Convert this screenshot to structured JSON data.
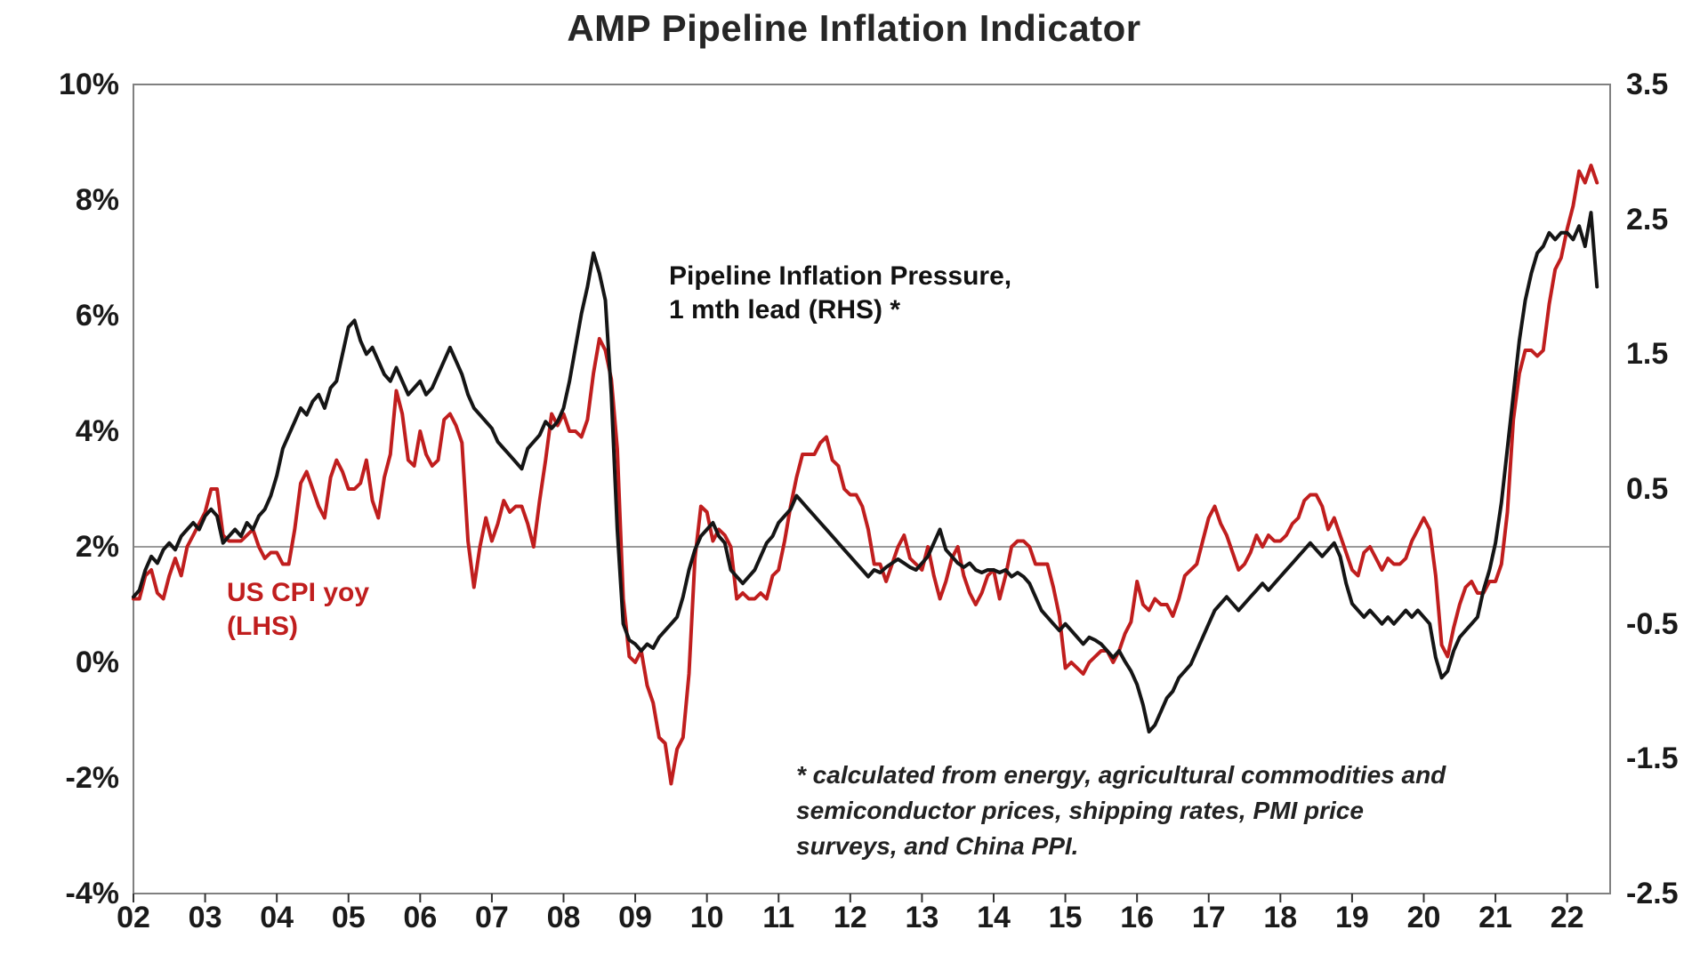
{
  "title": "AMP Pipeline Inflation Indicator",
  "chart_data": {
    "type": "line",
    "title": "AMP Pipeline Inflation Indicator",
    "x_start_year": 2002,
    "x_end": 2022.6,
    "points_per_year": 12,
    "x_tick_labels": [
      "02",
      "03",
      "04",
      "05",
      "06",
      "07",
      "08",
      "09",
      "10",
      "11",
      "12",
      "13",
      "14",
      "15",
      "16",
      "17",
      "18",
      "19",
      "20",
      "21",
      "22"
    ],
    "left_axis": {
      "range": [
        -4,
        10
      ],
      "tick_values": [
        10,
        8,
        6,
        4,
        2,
        0,
        -2,
        -4
      ],
      "tick_labels": [
        "10%",
        "8%",
        "6%",
        "4%",
        "2%",
        "0%",
        "-2%",
        "-4%"
      ]
    },
    "right_axis": {
      "range": [
        -2.5,
        3.5
      ],
      "tick_values": [
        3.5,
        2.5,
        1.5,
        0.5,
        -0.5,
        -1.5,
        -2.5
      ],
      "tick_labels": [
        "3.5",
        "2.5",
        "1.5",
        "0.5",
        "-0.5",
        "-1.5",
        "-2.5"
      ]
    },
    "gridline_left_value": 2,
    "colors": {
      "cpi_red": "#c01e1e",
      "pipeline_black": "#151515",
      "axis_box": "#808080",
      "gridline": "#9a9a9a"
    },
    "series": [
      {
        "name": "US CPI yoy (LHS)",
        "axis": "left",
        "color": "#c01e1e",
        "values": [
          1.1,
          1.1,
          1.5,
          1.6,
          1.2,
          1.1,
          1.5,
          1.8,
          1.5,
          2.0,
          2.2,
          2.4,
          2.6,
          3.0,
          3.0,
          2.2,
          2.1,
          2.1,
          2.1,
          2.2,
          2.3,
          2.0,
          1.8,
          1.9,
          1.9,
          1.7,
          1.7,
          2.3,
          3.1,
          3.3,
          3.0,
          2.7,
          2.5,
          3.2,
          3.5,
          3.3,
          3.0,
          3.0,
          3.1,
          3.5,
          2.8,
          2.5,
          3.2,
          3.6,
          4.7,
          4.3,
          3.5,
          3.4,
          4.0,
          3.6,
          3.4,
          3.5,
          4.2,
          4.3,
          4.1,
          3.8,
          2.1,
          1.3,
          2.0,
          2.5,
          2.1,
          2.4,
          2.8,
          2.6,
          2.7,
          2.7,
          2.4,
          2.0,
          2.8,
          3.5,
          4.3,
          4.1,
          4.3,
          4.0,
          4.0,
          3.9,
          4.2,
          5.0,
          5.6,
          5.4,
          4.9,
          3.7,
          1.1,
          0.1,
          0.0,
          0.2,
          -0.4,
          -0.7,
          -1.3,
          -1.4,
          -2.1,
          -1.5,
          -1.3,
          -0.2,
          1.8,
          2.7,
          2.6,
          2.1,
          2.3,
          2.2,
          2.0,
          1.1,
          1.2,
          1.1,
          1.1,
          1.2,
          1.1,
          1.5,
          1.6,
          2.1,
          2.7,
          3.2,
          3.6,
          3.6,
          3.6,
          3.8,
          3.9,
          3.5,
          3.4,
          3.0,
          2.9,
          2.9,
          2.7,
          2.3,
          1.7,
          1.7,
          1.4,
          1.7,
          2.0,
          2.2,
          1.8,
          1.7,
          1.6,
          2.0,
          1.5,
          1.1,
          1.4,
          1.8,
          2.0,
          1.5,
          1.2,
          1.0,
          1.2,
          1.5,
          1.6,
          1.1,
          1.5,
          2.0,
          2.1,
          2.1,
          2.0,
          1.7,
          1.7,
          1.7,
          1.3,
          0.8,
          -0.1,
          0.0,
          -0.1,
          -0.2,
          0.0,
          0.1,
          0.2,
          0.2,
          0.0,
          0.2,
          0.5,
          0.7,
          1.4,
          1.0,
          0.9,
          1.1,
          1.0,
          1.0,
          0.8,
          1.1,
          1.5,
          1.6,
          1.7,
          2.1,
          2.5,
          2.7,
          2.4,
          2.2,
          1.9,
          1.6,
          1.7,
          1.9,
          2.2,
          2.0,
          2.2,
          2.1,
          2.1,
          2.2,
          2.4,
          2.5,
          2.8,
          2.9,
          2.9,
          2.7,
          2.3,
          2.5,
          2.2,
          1.9,
          1.6,
          1.5,
          1.9,
          2.0,
          1.8,
          1.6,
          1.8,
          1.7,
          1.7,
          1.8,
          2.1,
          2.3,
          2.5,
          2.3,
          1.5,
          0.3,
          0.1,
          0.6,
          1.0,
          1.3,
          1.4,
          1.2,
          1.2,
          1.4,
          1.4,
          1.7,
          2.6,
          4.2,
          5.0,
          5.4,
          5.4,
          5.3,
          5.4,
          6.2,
          6.8,
          7.0,
          7.5,
          7.9,
          8.5,
          8.3,
          8.6,
          8.3
        ]
      },
      {
        "name": "Pipeline Inflation Pressure, 1 mth lead (RHS) *",
        "axis": "right",
        "color": "#151515",
        "values": [
          -0.3,
          -0.25,
          -0.1,
          0.0,
          -0.05,
          0.05,
          0.1,
          0.05,
          0.15,
          0.2,
          0.25,
          0.2,
          0.3,
          0.35,
          0.3,
          0.1,
          0.15,
          0.2,
          0.15,
          0.25,
          0.2,
          0.3,
          0.35,
          0.45,
          0.6,
          0.8,
          0.9,
          1.0,
          1.1,
          1.05,
          1.15,
          1.2,
          1.1,
          1.25,
          1.3,
          1.5,
          1.7,
          1.75,
          1.6,
          1.5,
          1.55,
          1.45,
          1.35,
          1.3,
          1.4,
          1.3,
          1.2,
          1.25,
          1.3,
          1.2,
          1.25,
          1.35,
          1.45,
          1.55,
          1.45,
          1.35,
          1.2,
          1.1,
          1.05,
          1.0,
          0.95,
          0.85,
          0.8,
          0.75,
          0.7,
          0.65,
          0.8,
          0.85,
          0.9,
          1.0,
          0.95,
          1.0,
          1.1,
          1.3,
          1.55,
          1.8,
          2.0,
          2.25,
          2.1,
          1.9,
          1.2,
          0.2,
          -0.5,
          -0.62,
          -0.65,
          -0.7,
          -0.65,
          -0.68,
          -0.6,
          -0.55,
          -0.5,
          -0.45,
          -0.3,
          -0.1,
          0.05,
          0.15,
          0.2,
          0.25,
          0.15,
          0.1,
          -0.1,
          -0.15,
          -0.2,
          -0.15,
          -0.1,
          0.0,
          0.1,
          0.15,
          0.25,
          0.3,
          0.35,
          0.45,
          0.4,
          0.35,
          0.3,
          0.25,
          0.2,
          0.15,
          0.1,
          0.05,
          0.0,
          -0.05,
          -0.1,
          -0.15,
          -0.1,
          -0.12,
          -0.08,
          -0.05,
          -0.02,
          -0.05,
          -0.08,
          -0.1,
          -0.05,
          0.0,
          0.1,
          0.2,
          0.05,
          0.0,
          -0.05,
          -0.08,
          -0.05,
          -0.1,
          -0.12,
          -0.1,
          -0.1,
          -0.12,
          -0.1,
          -0.15,
          -0.12,
          -0.15,
          -0.2,
          -0.3,
          -0.4,
          -0.45,
          -0.5,
          -0.55,
          -0.5,
          -0.55,
          -0.6,
          -0.65,
          -0.6,
          -0.62,
          -0.65,
          -0.7,
          -0.75,
          -0.7,
          -0.78,
          -0.85,
          -0.95,
          -1.1,
          -1.3,
          -1.25,
          -1.15,
          -1.05,
          -1.0,
          -0.9,
          -0.85,
          -0.8,
          -0.7,
          -0.6,
          -0.5,
          -0.4,
          -0.35,
          -0.3,
          -0.35,
          -0.4,
          -0.35,
          -0.3,
          -0.25,
          -0.2,
          -0.25,
          -0.2,
          -0.15,
          -0.1,
          -0.05,
          0.0,
          0.05,
          0.1,
          0.05,
          0.0,
          0.05,
          0.1,
          0.0,
          -0.2,
          -0.35,
          -0.4,
          -0.45,
          -0.4,
          -0.45,
          -0.5,
          -0.45,
          -0.5,
          -0.45,
          -0.4,
          -0.45,
          -0.4,
          -0.45,
          -0.5,
          -0.75,
          -0.9,
          -0.85,
          -0.7,
          -0.6,
          -0.55,
          -0.5,
          -0.45,
          -0.25,
          -0.1,
          0.1,
          0.4,
          0.8,
          1.2,
          1.6,
          1.9,
          2.1,
          2.25,
          2.3,
          2.4,
          2.35,
          2.4,
          2.4,
          2.35,
          2.45,
          2.3,
          2.55,
          2.0
        ]
      }
    ],
    "annotations": {
      "pipeline_label": "Pipeline Inflation Pressure,\n1 mth lead (RHS) *",
      "cpi_label": "US CPI yoy\n(LHS)",
      "footnote": "* calculated from energy, agricultural commodities and\nsemiconductor prices, shipping rates, PMI price\nsurveys, and China PPI."
    }
  }
}
